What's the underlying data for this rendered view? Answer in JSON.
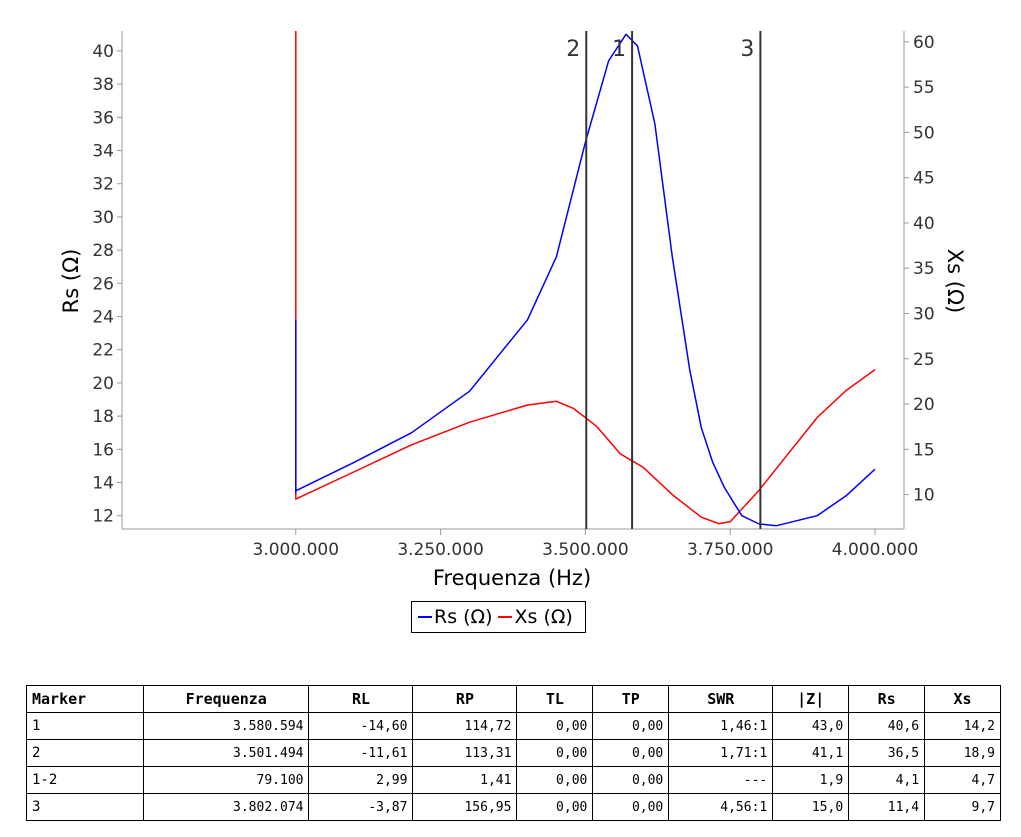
{
  "chart_data": {
    "type": "line",
    "xlabel": "Frequenza (Hz)",
    "ylabel_left": "Rs (Ω)",
    "ylabel_right": "Xs (Ω)",
    "xlim": [
      2700000,
      4050000
    ],
    "ylim_left": [
      11.2,
      41.2
    ],
    "ylim_right": [
      6.2,
      61.2
    ],
    "x_ticks": [
      3000000,
      3250000,
      3500000,
      3750000,
      4000000
    ],
    "x_tick_labels": [
      "3.000.000",
      "3.250.000",
      "3.500.000",
      "3.750.000",
      "4.000.000"
    ],
    "y_left_ticks": [
      12,
      14,
      16,
      18,
      20,
      22,
      24,
      26,
      28,
      30,
      32,
      34,
      36,
      38,
      40
    ],
    "y_right_ticks": [
      10,
      15,
      20,
      25,
      30,
      35,
      40,
      45,
      50,
      55,
      60
    ],
    "grid": false,
    "legend_position": "bottom-center",
    "series": [
      {
        "name": "Rs (Ω)",
        "axis": "left",
        "color": "#0000ff",
        "x": [
          3000000,
          3000000,
          3000000,
          3100000,
          3200000,
          3300000,
          3400000,
          3450000,
          3500000,
          3540000,
          3570000,
          3590000,
          3620000,
          3650000,
          3680000,
          3700000,
          3720000,
          3740000,
          3770000,
          3800000,
          3830000,
          3900000,
          3950000,
          4000000
        ],
        "y": [
          23.8,
          13.4,
          13.5,
          15.2,
          17.0,
          19.5,
          23.8,
          27.6,
          34.5,
          39.4,
          41.0,
          40.3,
          35.6,
          27.6,
          20.8,
          17.3,
          15.2,
          13.7,
          12.0,
          11.5,
          11.4,
          12.0,
          13.2,
          14.8
        ]
      },
      {
        "name": "Xs (Ω)",
        "axis": "right",
        "color": "#ff0000",
        "x": [
          3000000,
          3000000,
          3000000,
          3100000,
          3200000,
          3300000,
          3400000,
          3450000,
          3480000,
          3520000,
          3560000,
          3600000,
          3650000,
          3700000,
          3730000,
          3750000,
          3800000,
          3850000,
          3900000,
          3950000,
          4000000
        ],
        "y": [
          61.2,
          9.5,
          9.5,
          12.5,
          15.5,
          18.0,
          19.9,
          20.3,
          19.5,
          17.5,
          14.5,
          13.0,
          10.0,
          7.5,
          6.8,
          7.0,
          10.5,
          14.5,
          18.5,
          21.5,
          23.8
        ]
      }
    ],
    "markers": [
      {
        "label": "1",
        "x": 3580594
      },
      {
        "label": "2",
        "x": 3501494
      },
      {
        "label": "3",
        "x": 3802074
      }
    ]
  },
  "table": {
    "headers": [
      "Marker",
      "Frequenza",
      "RL",
      "RP",
      "TL",
      "TP",
      "SWR",
      "|Z|",
      "Rs",
      "Xs"
    ],
    "rows": [
      [
        "1",
        "3.580.594",
        "-14,60",
        "114,72",
        "0,00",
        "0,00",
        "1,46:1",
        "43,0",
        "40,6",
        "14,2"
      ],
      [
        "2",
        "3.501.494",
        "-11,61",
        "113,31",
        "0,00",
        "0,00",
        "1,71:1",
        "41,1",
        "36,5",
        "18,9"
      ],
      [
        "1-2",
        "79.100",
        "2,99",
        "1,41",
        "0,00",
        "0,00",
        "---",
        "1,9",
        "4,1",
        "4,7"
      ],
      [
        "3",
        "3.802.074",
        "-3,87",
        "156,95",
        "0,00",
        "0,00",
        "4,56:1",
        "15,0",
        "11,4",
        "9,7"
      ]
    ]
  }
}
